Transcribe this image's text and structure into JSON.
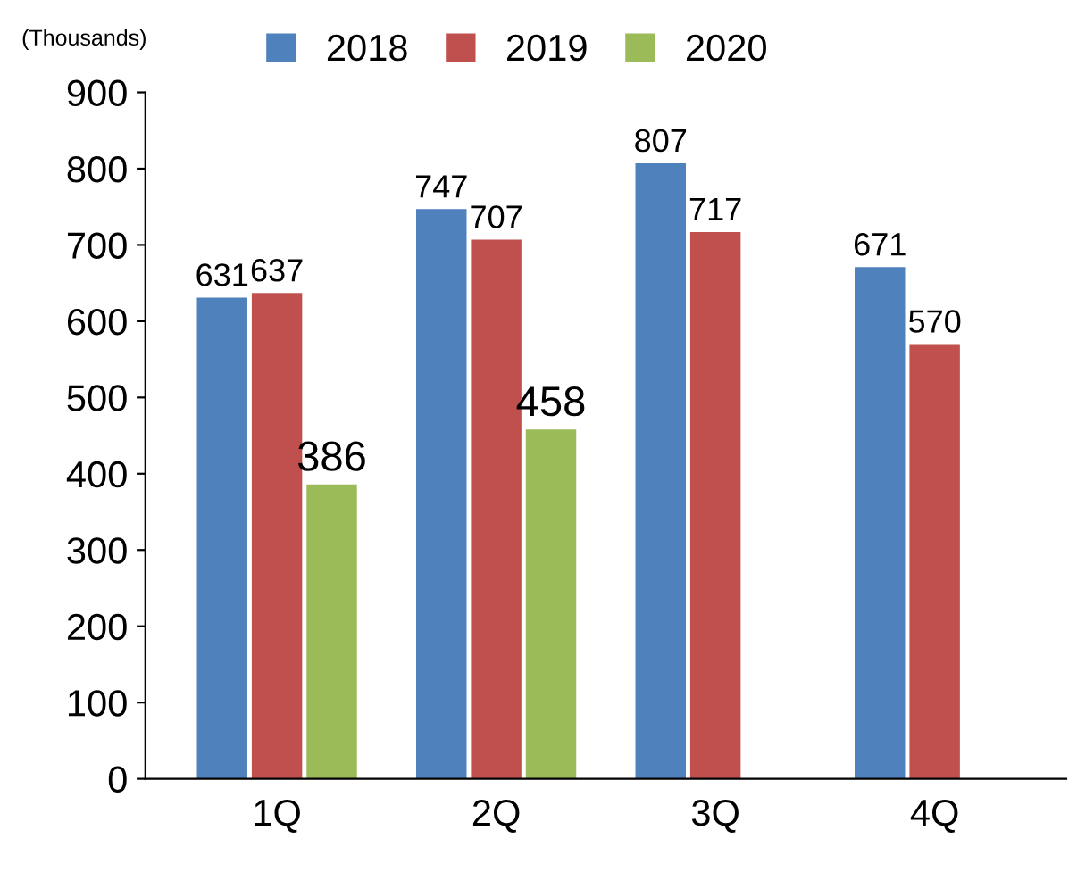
{
  "chart_data": {
    "type": "bar",
    "ylabel": "(Thousands)",
    "categories": [
      "1Q",
      "2Q",
      "3Q",
      "4Q"
    ],
    "series": [
      {
        "name": "2018",
        "color": "#4f81bd",
        "values": [
          631,
          747,
          807,
          671
        ]
      },
      {
        "name": "2019",
        "color": "#c0504d",
        "values": [
          637,
          707,
          717,
          570
        ]
      },
      {
        "name": "2020",
        "color": "#9bbb59",
        "values": [
          386,
          458,
          null,
          null
        ]
      }
    ],
    "ylim": [
      0,
      900
    ],
    "yticks": [
      0,
      100,
      200,
      300,
      400,
      500,
      600,
      700,
      800,
      900
    ],
    "data_labels": true,
    "legend": "top",
    "grid": false
  }
}
